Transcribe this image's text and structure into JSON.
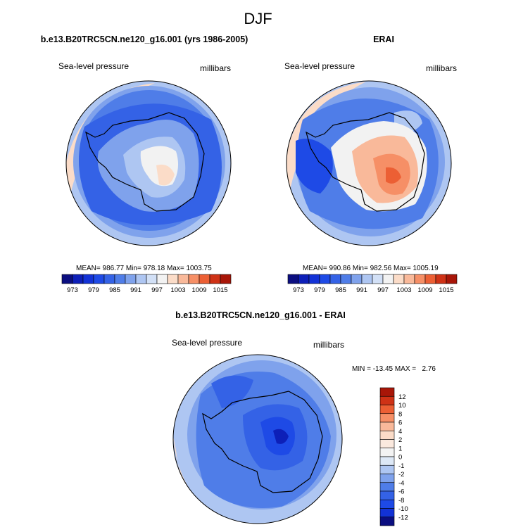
{
  "figure": {
    "title": "DJF"
  },
  "chart_data": [
    {
      "type": "heatmap",
      "projection": "polar-stereographic-south",
      "title": "b.e13.B20TRC5CN.ne120_g16.001 (yrs 1986-2005)",
      "left_label": "Sea-level pressure",
      "right_label": "millibars",
      "stats_text": "MEAN= 986.77  Min= 978.18  Max= 1003.75",
      "stats": {
        "mean": 986.77,
        "min": 978.18,
        "max": 1003.75
      },
      "colorbar": {
        "orientation": "horizontal",
        "levels": [
          973,
          976,
          979,
          982,
          985,
          988,
          991,
          994,
          997,
          1000,
          1003,
          1006,
          1009,
          1012,
          1015
        ],
        "tick_labels": [
          "973",
          "979",
          "985",
          "991",
          "997",
          "1003",
          "1009",
          "1015"
        ],
        "colors": [
          "#0b0e80",
          "#0d1fb8",
          "#1232d6",
          "#1e4ae6",
          "#3462e6",
          "#4f7de8",
          "#7fa2ec",
          "#aec6f2",
          "#d2e0f6",
          "#f2f2f2",
          "#fbdcc8",
          "#f9b99a",
          "#f68f66",
          "#ec5f34",
          "#cf3216",
          "#a81608"
        ]
      }
    },
    {
      "type": "heatmap",
      "projection": "polar-stereographic-south",
      "title": "ERAI",
      "left_label": "Sea-level pressure",
      "right_label": "millibars",
      "stats_text": "MEAN= 990.86  Min= 982.56  Max= 1005.19",
      "stats": {
        "mean": 990.86,
        "min": 982.56,
        "max": 1005.19
      },
      "colorbar": {
        "orientation": "horizontal",
        "levels": [
          973,
          976,
          979,
          982,
          985,
          988,
          991,
          994,
          997,
          1000,
          1003,
          1006,
          1009,
          1012,
          1015
        ],
        "tick_labels": [
          "973",
          "979",
          "985",
          "991",
          "997",
          "1003",
          "1009",
          "1015"
        ],
        "colors": [
          "#0b0e80",
          "#0d1fb8",
          "#1232d6",
          "#1e4ae6",
          "#3462e6",
          "#4f7de8",
          "#7fa2ec",
          "#aec6f2",
          "#d2e0f6",
          "#f2f2f2",
          "#fbdcc8",
          "#f9b99a",
          "#f68f66",
          "#ec5f34",
          "#cf3216",
          "#a81608"
        ]
      }
    },
    {
      "type": "heatmap",
      "projection": "polar-stereographic-south",
      "title": "b.e13.B20TRC5CN.ne120_g16.001 - ERAI",
      "left_label": "Sea-level pressure",
      "right_label": "millibars",
      "stats_text": "MIN = -13.45 MAX =   2.76",
      "stats": {
        "min": -13.45,
        "max": 2.76
      },
      "colorbar": {
        "orientation": "vertical",
        "levels": [
          -12,
          -10,
          -8,
          -6,
          -4,
          -2,
          -1,
          0,
          1,
          2,
          4,
          6,
          8,
          10,
          12
        ],
        "tick_labels": [
          "12",
          "10",
          "8",
          "6",
          "4",
          "2",
          "1",
          "0",
          "-1",
          "-2",
          "-4",
          "-6",
          "-8",
          "-10",
          "-12"
        ],
        "colors_top_to_bottom": [
          "#a81608",
          "#cf3216",
          "#ec5f34",
          "#f68f66",
          "#f9b99a",
          "#fbdcc8",
          "#fbe9de",
          "#f3f3f3",
          "#dde8f6",
          "#aec6f2",
          "#7fa2ec",
          "#4f7de8",
          "#3462e6",
          "#1e4ae6",
          "#1232d6",
          "#0b0e80"
        ]
      }
    }
  ]
}
